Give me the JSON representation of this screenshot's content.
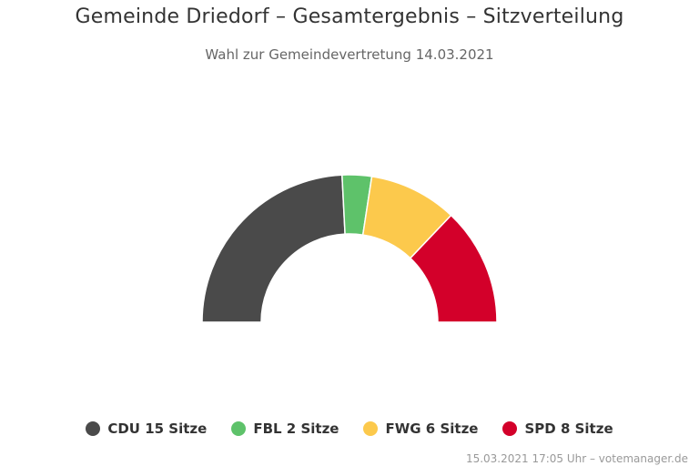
{
  "chart_data": {
    "type": "pie",
    "variant": "semicircle",
    "title": "Gemeinde Driedorf – Gesamtergebnis – Sitzverteilung",
    "subtitle": "Wahl zur Gemeindevertretung 14.03.2021",
    "legend_position": "bottom",
    "series": [
      {
        "name": "CDU",
        "value": 15,
        "label": "CDU 15 Sitze",
        "color": "#4a4a4a"
      },
      {
        "name": "FBL",
        "value": 2,
        "label": "FBL 2 Sitze",
        "color": "#5ec26a"
      },
      {
        "name": "FWG",
        "value": 6,
        "label": "FWG 6 Sitze",
        "color": "#fcc94c"
      },
      {
        "name": "SPD",
        "value": 8,
        "label": "SPD 8 Sitze",
        "color": "#d3002a"
      }
    ]
  },
  "credits": "15.03.2021 17:05 Uhr – votemanager.de"
}
